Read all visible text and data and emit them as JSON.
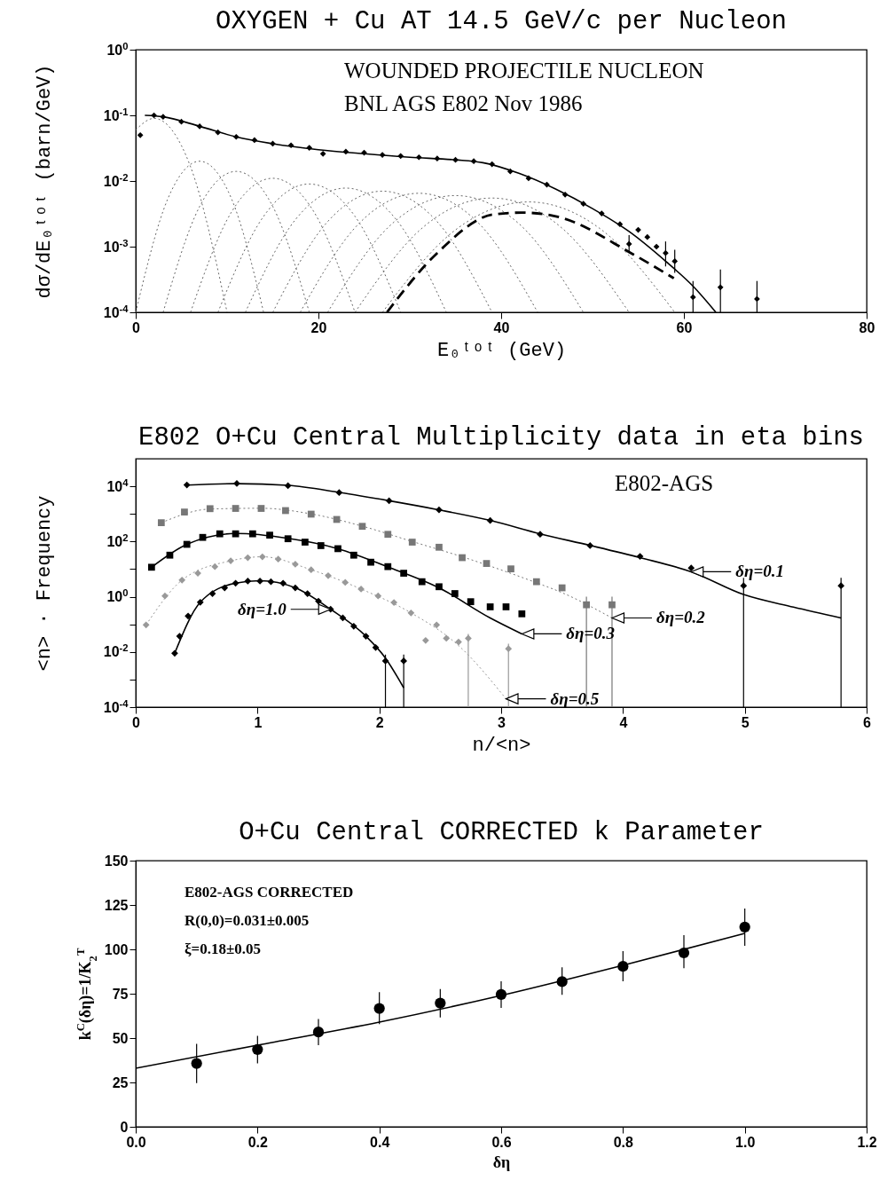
{
  "chart_data": [
    {
      "type": "scatter",
      "title": "OXYGEN + Cu AT 14.5 GeV/c per Nucleon",
      "xlabel": "E₀ᵗᵒᵗ (GeV)",
      "ylabel": "dσ/dE₀ᵗᵒᵗ (barn/GeV)",
      "xlim": [
        0,
        80
      ],
      "xticks": [
        0,
        20,
        40,
        60,
        80
      ],
      "ylim": [
        0.0001,
        1
      ],
      "yticks": [
        {
          "value": 0.0001,
          "label": "10$^{-4}$"
        },
        {
          "value": 0.001,
          "label": "10$^{-3}$"
        },
        {
          "value": 0.01,
          "label": "10$^{-2}$"
        },
        {
          "value": 0.1,
          "label": "10$^{-1}$"
        },
        {
          "value": 1,
          "label": "10$^{0}$"
        }
      ],
      "log": true,
      "annotations": [
        "WOUNDED PROJECTILE NUCLEON",
        "BNL AGS E802 Nov 1986"
      ],
      "series": [
        {
          "type": "line",
          "color": "#555555",
          "line_style": "dotted",
          "x": [
            0,
            2,
            6,
            10
          ],
          "values": [
            0.06,
            0.09,
            0.0165,
            0.0001
          ]
        },
        {
          "type": "line",
          "color": "#555555",
          "line_style": "dotted",
          "x": [
            0,
            3.5,
            7,
            10.5,
            14
          ],
          "values": [
            0.0001,
            0.0053,
            0.02,
            0.0053,
            0.0001
          ]
        },
        {
          "type": "line",
          "color": "#555555",
          "line_style": "dotted",
          "x": [
            3,
            7,
            11,
            15,
            19
          ],
          "values": [
            0.0001,
            0.0041,
            0.014,
            0.0041,
            0.0001
          ]
        },
        {
          "type": "line",
          "color": "#555555",
          "line_style": "dotted",
          "x": [
            6,
            10.5,
            15,
            19.5,
            24
          ],
          "values": [
            0.0001,
            0.0034,
            0.011,
            0.0034,
            0.0001
          ]
        },
        {
          "type": "line",
          "color": "#555555",
          "line_style": "dotted",
          "x": [
            9,
            14,
            19,
            24,
            29
          ],
          "values": [
            0.0001,
            0.0029,
            0.009,
            0.0029,
            0.0001
          ]
        },
        {
          "type": "line",
          "color": "#555555",
          "line_style": "dotted",
          "x": [
            12,
            17.5,
            23,
            28.5,
            34
          ],
          "values": [
            0.0001,
            0.0026,
            0.0078,
            0.0026,
            0.0001
          ]
        },
        {
          "type": "line",
          "color": "#555555",
          "line_style": "dotted",
          "x": [
            15,
            21,
            27,
            33,
            39
          ],
          "values": [
            0.0001,
            0.0024,
            0.007,
            0.0024,
            0.0001
          ]
        },
        {
          "type": "line",
          "color": "#555555",
          "line_style": "dotted",
          "x": [
            18,
            24.5,
            31,
            37.5,
            44
          ],
          "values": [
            0.0001,
            0.0023,
            0.0065,
            0.0023,
            0.0001
          ]
        },
        {
          "type": "line",
          "color": "#555555",
          "line_style": "dotted",
          "x": [
            21,
            28,
            35,
            42,
            49
          ],
          "values": [
            0.0001,
            0.0022,
            0.006,
            0.0022,
            0.0001
          ]
        },
        {
          "type": "line",
          "color": "#555555",
          "line_style": "dotted",
          "x": [
            24,
            31.5,
            39,
            46.5,
            54
          ],
          "values": [
            0.0001,
            0.002,
            0.0055,
            0.002,
            0.0001
          ]
        },
        {
          "type": "line",
          "color": "#555555",
          "line_style": "dotted",
          "x": [
            27,
            35,
            43,
            51,
            59
          ],
          "values": [
            0.0001,
            0.0018,
            0.0048,
            0.0018,
            0.0001
          ]
        },
        {
          "type": "line",
          "color": "#000000",
          "line_style": "dashed",
          "x": [
            27.5,
            33,
            39.2,
            42.3,
            46.4,
            54.2,
            58.9
          ],
          "values": [
            0.0001,
            0.0008,
            0.0031,
            0.0033,
            0.0028,
            0.0008,
            0.00033
          ]
        },
        {
          "type": "line",
          "color": "#000000",
          "line_style": "solid",
          "x": [
            1,
            3,
            7,
            11,
            15,
            20,
            25,
            30,
            35,
            38,
            42,
            46,
            50,
            54,
            58,
            61,
            63.5
          ],
          "values": [
            0.1,
            0.095,
            0.068,
            0.047,
            0.037,
            0.03,
            0.026,
            0.023,
            0.021,
            0.019,
            0.013,
            0.0075,
            0.0038,
            0.0017,
            0.0006,
            0.00025,
            0.0001
          ]
        },
        {
          "type": "scatter",
          "color": "#000000",
          "marker": "diamond",
          "x": [
            0.5,
            2,
            3,
            5,
            7,
            9,
            11,
            13,
            15,
            17,
            19,
            20.5,
            23,
            25,
            27,
            29,
            31,
            33,
            35,
            37,
            39,
            41,
            43,
            45,
            47,
            49,
            51,
            53,
            54,
            55,
            56,
            57,
            58,
            59,
            61,
            64,
            68
          ],
          "values": [
            0.05,
            0.1,
            0.095,
            0.08,
            0.068,
            0.055,
            0.047,
            0.042,
            0.037,
            0.035,
            0.032,
            0.026,
            0.028,
            0.027,
            0.025,
            0.024,
            0.023,
            0.022,
            0.021,
            0.02,
            0.018,
            0.014,
            0.011,
            0.0088,
            0.0062,
            0.0045,
            0.0032,
            0.0022,
            0.0011,
            0.0018,
            0.0014,
            0.001,
            0.0008,
            0.0006,
            0.00017,
            0.00024,
            0.00016
          ],
          "errors": [
            null,
            null,
            null,
            null,
            null,
            null,
            null,
            null,
            null,
            null,
            null,
            null,
            null,
            null,
            null,
            null,
            null,
            null,
            null,
            null,
            null,
            null,
            null,
            null,
            null,
            null,
            null,
            null,
            [
              0.0008,
              0.0015
            ],
            null,
            null,
            null,
            [
              0.0005,
              0.0012
            ],
            [
              0.0004,
              0.0009
            ],
            [
              0.0001,
              0.0003
            ],
            [
              0.0001,
              0.00045
            ],
            [
              0.0001,
              0.0003
            ]
          ]
        }
      ]
    },
    {
      "type": "scatter",
      "title": "E802 O+Cu Central Multiplicity data in eta bins",
      "xlabel": "n/<n>",
      "ylabel": "<n> · Frequency",
      "xlim": [
        0,
        6
      ],
      "xticks": [
        0,
        1,
        2,
        3,
        4,
        5,
        6
      ],
      "ylim": [
        0.0001,
        100000
      ],
      "yticks": [
        {
          "value": 0.0001,
          "label": "10$^{-4}$"
        },
        {
          "value": 0.001,
          "label": null
        },
        {
          "value": 0.01,
          "label": "10$^{-2}$"
        },
        {
          "value": 0.1,
          "label": null
        },
        {
          "value": 1,
          "label": "10$^{0}$"
        },
        {
          "value": 10,
          "label": null
        },
        {
          "value": 100,
          "label": "10$^{2}$"
        },
        {
          "value": 1000,
          "label": null
        },
        {
          "value": 10000,
          "label": "10$^{4}$"
        }
      ],
      "log": true,
      "annotations": [
        "E802-AGS",
        {
          "text": "δη=0.1",
          "x": 4.56,
          "y": 8
        },
        {
          "text": "δη=0.2",
          "x": 3.91,
          "y": 0.17
        },
        {
          "text": "δη=0.3",
          "x": 3.17,
          "y": 0.045
        },
        {
          "text": "δη=0.5",
          "x": 3.04,
          "y": 0.0002
        },
        {
          "text": "δη=1.0",
          "x": 1.6,
          "y": 0.35
        }
      ],
      "series": [
        {
          "type": "line",
          "color": "#000000",
          "line_style": "solid",
          "x": [
            0.42,
            0.83,
            1.25,
            1.67,
            2.08,
            2.49,
            2.91,
            3.32,
            3.73,
            4.14,
            4.56,
            4.99,
            5.4,
            5.79
          ],
          "values": [
            11000,
            12500,
            10800,
            6000,
            3000,
            1400,
            580,
            190,
            72,
            26,
            8,
            1.2,
            0.42,
            0.17
          ]
        },
        {
          "type": "scatter",
          "color": "#000000",
          "marker": "diamond",
          "x": [
            0.42,
            0.83,
            1.25,
            1.67,
            2.08,
            2.49,
            2.91,
            3.32,
            3.73,
            4.14,
            4.56,
            4.99,
            5.79
          ],
          "values": [
            11200,
            12600,
            10500,
            5900,
            3000,
            1400,
            575,
            182,
            71,
            29,
            11,
            2.5,
            2.5
          ],
          "errors": [
            null,
            null,
            null,
            null,
            null,
            null,
            null,
            null,
            null,
            null,
            null,
            [
              0.0001,
              4.8
            ],
            [
              0.0001,
              4.8
            ]
          ]
        },
        {
          "type": "line",
          "color": "#666666",
          "line_style": "dotted",
          "x": [
            0.21,
            0.61,
            1.03,
            1.44,
            1.86,
            2.27,
            2.68,
            3.08,
            3.29,
            3.5,
            3.91
          ],
          "values": [
            480,
            1500,
            1600,
            1000,
            360,
            100,
            28,
            7,
            3.2,
            1.4,
            0.17
          ]
        },
        {
          "type": "scatter",
          "color": "#777777",
          "marker": "square",
          "x": [
            0.21,
            0.4,
            0.61,
            0.82,
            1.03,
            1.23,
            1.44,
            1.65,
            1.86,
            2.07,
            2.27,
            2.49,
            2.68,
            2.88,
            3.08,
            3.29,
            3.5,
            3.7,
            3.91
          ],
          "values": [
            480,
            1170,
            1550,
            1580,
            1580,
            1320,
            980,
            630,
            355,
            182,
            95,
            62,
            26,
            16,
            10.2,
            3.5,
            2.1,
            0.51,
            0.51
          ],
          "errors": [
            null,
            null,
            null,
            null,
            null,
            null,
            null,
            null,
            null,
            null,
            null,
            null,
            null,
            null,
            null,
            null,
            null,
            [
              0.0001,
              1
            ],
            [
              0.0001,
              1
            ]
          ]
        },
        {
          "type": "line",
          "color": "#000000",
          "line_style": "solid",
          "x": [
            0.13,
            0.42,
            0.82,
            1.25,
            1.66,
            2.07,
            2.49,
            2.91,
            3.17
          ],
          "values": [
            11.7,
            79,
            195,
            130,
            55,
            12,
            2.1,
            0.17,
            0.045
          ]
        },
        {
          "type": "scatter",
          "color": "#000000",
          "marker": "square",
          "x": [
            0.13,
            0.28,
            0.42,
            0.55,
            0.69,
            0.82,
            0.96,
            1.1,
            1.25,
            1.39,
            1.52,
            1.66,
            1.79,
            1.93,
            2.07,
            2.2,
            2.35,
            2.49,
            2.62,
            2.75,
            2.91,
            3.04,
            3.17
          ],
          "values": [
            11.7,
            32,
            79,
            141,
            190,
            190,
            190,
            170,
            126,
            95,
            71,
            55,
            32,
            17.8,
            12.3,
            7.1,
            3.5,
            2.3,
            1.3,
            0.66,
            0.43,
            0.43,
            0.24
          ]
        },
        {
          "type": "line",
          "color": "#888888",
          "line_style": "dotted",
          "x": [
            0.085,
            0.38,
            0.78,
            1.04,
            1.44,
            1.85,
            2.26,
            2.65,
            3.04
          ],
          "values": [
            0.095,
            4,
            20,
            28,
            9.5,
            1.9,
            0.26,
            0.017,
            0.0002
          ]
        },
        {
          "type": "scatter",
          "color": "#999999",
          "marker": "diamond",
          "x": [
            0.085,
            0.24,
            0.38,
            0.51,
            0.65,
            0.78,
            0.92,
            1.04,
            1.17,
            1.31,
            1.44,
            1.58,
            1.72,
            1.85,
            1.99,
            2.12,
            2.26,
            2.38,
            2.47,
            2.55,
            2.65,
            2.73,
            3.06
          ],
          "values": [
            0.095,
            1.07,
            4,
            7.1,
            12.3,
            20,
            26,
            28,
            23,
            15,
            9.5,
            5.8,
            3.3,
            1.9,
            1.07,
            0.62,
            0.26,
            0.026,
            0.095,
            0.031,
            0.023,
            0.031,
            0.013
          ],
          "errors": [
            null,
            null,
            null,
            null,
            null,
            null,
            null,
            null,
            null,
            null,
            null,
            null,
            null,
            null,
            null,
            null,
            null,
            null,
            null,
            null,
            null,
            [
              0.0001,
              0.045
            ],
            [
              0.0001,
              0.02
            ]
          ]
        },
        {
          "type": "line",
          "color": "#000000",
          "line_style": "solid",
          "x": [
            0.32,
            0.53,
            0.82,
            1.02,
            1.31,
            1.6,
            1.89,
            2.05,
            2.2
          ],
          "values": [
            0.009,
            0.63,
            3.1,
            3.8,
            2.1,
            0.35,
            0.037,
            0.006,
            0.0005
          ]
        },
        {
          "type": "scatter",
          "color": "#000000",
          "marker": "diamond",
          "x": [
            0.32,
            0.36,
            0.43,
            0.53,
            0.63,
            0.73,
            0.82,
            0.92,
            1.02,
            1.11,
            1.21,
            1.31,
            1.41,
            1.5,
            1.6,
            1.7,
            1.79,
            1.89,
            1.97,
            2.05,
            2.2
          ],
          "values": [
            0.0089,
            0.037,
            0.2,
            0.63,
            1.3,
            2.1,
            3.1,
            3.7,
            3.7,
            3.5,
            3.1,
            2.1,
            1.3,
            0.69,
            0.35,
            0.17,
            0.085,
            0.037,
            0.0145,
            0.0047,
            0.0047
          ],
          "errors": [
            null,
            null,
            null,
            null,
            null,
            null,
            null,
            null,
            null,
            null,
            null,
            null,
            null,
            null,
            null,
            null,
            null,
            null,
            null,
            [
              0.0001,
              0.008
            ],
            [
              0.0001,
              0.008
            ]
          ]
        }
      ]
    },
    {
      "type": "scatter",
      "title": "O+Cu Central CORRECTED k Parameter",
      "xlabel": "δη",
      "ylabel": "k$^{C}$(δη)=1/K$_{2}$$^{T}$",
      "xlim": [
        0,
        1.2
      ],
      "xticks": [
        {
          "value": 0,
          "label": "0.0"
        },
        {
          "value": 0.2,
          "label": "0.2"
        },
        {
          "value": 0.4,
          "label": "0.4"
        },
        {
          "value": 0.6,
          "label": "0.6"
        },
        {
          "value": 0.8,
          "label": "0.8"
        },
        {
          "value": 1,
          "label": "1.0"
        },
        {
          "value": 1.2,
          "label": "1.2"
        }
      ],
      "ylim": [
        0,
        150
      ],
      "yticks": [
        0,
        25,
        50,
        75,
        100,
        125,
        150
      ],
      "annotations": [
        "E802-AGS CORRECTED",
        "R(0,0)=0.031±0.005",
        "ξ=0.18±0.05"
      ],
      "series": [
        {
          "type": "line",
          "color": "#000000",
          "line_style": "solid",
          "x": [
            0,
            0.2,
            0.4,
            0.6,
            0.8,
            1
          ],
          "values": [
            33,
            46,
            59,
            74,
            91,
            109
          ]
        },
        {
          "type": "scatter",
          "color": "#000000",
          "marker": "circle",
          "x": [
            0.1,
            0.2,
            0.3,
            0.4,
            0.5,
            0.6,
            0.7,
            0.8,
            0.9,
            1
          ],
          "values": [
            35.7,
            43.6,
            53.4,
            66.7,
            69.7,
            74.6,
            81.8,
            90.4,
            98,
            112.6
          ],
          "errors": [
            [
              24.6,
              46.8
            ],
            [
              35.7,
              51.2
            ],
            [
              46,
              60.8
            ],
            [
              57.9,
              75.9
            ],
            [
              61.6,
              77.6
            ],
            [
              67,
              82
            ],
            [
              74.4,
              89.9
            ],
            [
              82,
              99
            ],
            [
              89.4,
              108
            ],
            [
              102,
              123
            ]
          ]
        }
      ]
    }
  ]
}
